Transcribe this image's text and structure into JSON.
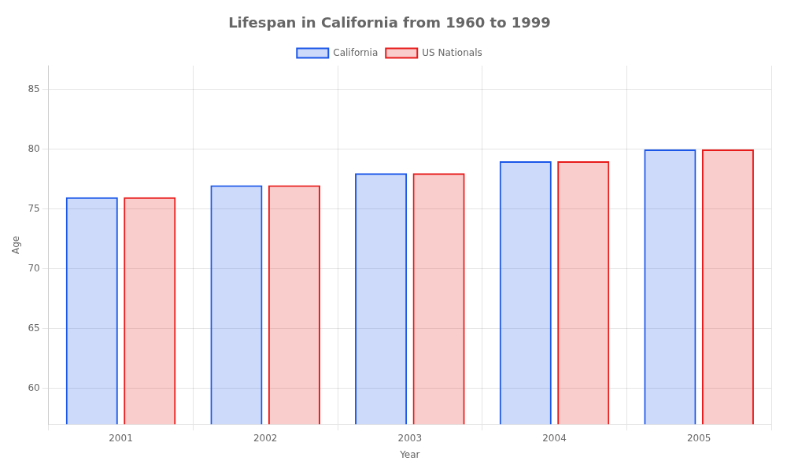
{
  "chart_data": {
    "type": "bar",
    "title": "Lifespan in California from 1960 to 1999",
    "xlabel": "Year",
    "ylabel": "Age",
    "categories": [
      "2001",
      "2002",
      "2003",
      "2004",
      "2005"
    ],
    "series": [
      {
        "name": "California",
        "color": "#1a56e8",
        "values": [
          76,
          77,
          78,
          79,
          80
        ]
      },
      {
        "name": "US Nationals",
        "color": "#e81a1a",
        "values": [
          76,
          77,
          78,
          79,
          80
        ]
      }
    ],
    "ylim": [
      57,
      87
    ],
    "yticks": [
      60,
      65,
      70,
      75,
      80,
      85
    ],
    "grid": true,
    "legend": "top"
  }
}
